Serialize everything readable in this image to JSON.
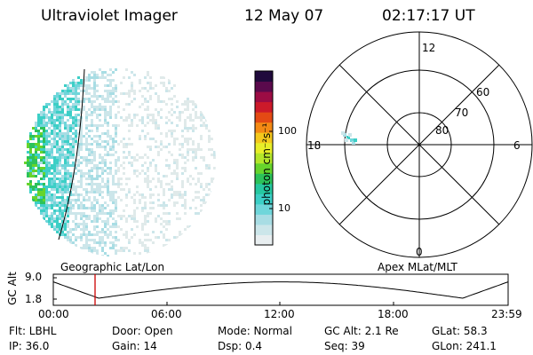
{
  "header": {
    "instrument": "Ultraviolet Imager",
    "date": "12 May 07",
    "time": "02:17:17 UT"
  },
  "colorbar": {
    "label": "photon cm⁻²s⁻¹",
    "ticks": [
      "100",
      "10"
    ],
    "scale": "log",
    "colors": [
      "#e8eef0",
      "#cce6ea",
      "#a8dde4",
      "#6fd6da",
      "#3ccfc6",
      "#26c8a0",
      "#2cc25a",
      "#66d42c",
      "#b4e62a",
      "#e8ee28",
      "#f4c81c",
      "#f48a14",
      "#e44a14",
      "#cc1a2a",
      "#9c0c44",
      "#5a0a4c",
      "#200a3c"
    ]
  },
  "polar_plot": {
    "lat_labels": [
      "60",
      "70",
      "80"
    ],
    "mlt_labels": [
      "12",
      "18",
      "6",
      "0"
    ]
  },
  "timeline": {
    "left_label": "Geographic Lat/Lon",
    "right_label": "Apex MLat/MLT",
    "y_axis_label": "GC Alt",
    "y_ticks": [
      "9.0",
      "1.8"
    ],
    "x_ticks": [
      "00:00",
      "06:00",
      "12:00",
      "18:00",
      "23:59"
    ],
    "marker_color": "#cc0000"
  },
  "info": {
    "flt": "Flt: LBHL",
    "door": "Door: Open",
    "mode": "Mode: Normal",
    "gc_alt": "GC Alt: 2.1 Re",
    "glat": "GLat:  58.3",
    "ip": "IP: 36.0",
    "gain": "Gain: 14",
    "dsp": "Dsp:    0.4",
    "seq": "Seq: 39",
    "glon": "GLon: 241.1"
  }
}
